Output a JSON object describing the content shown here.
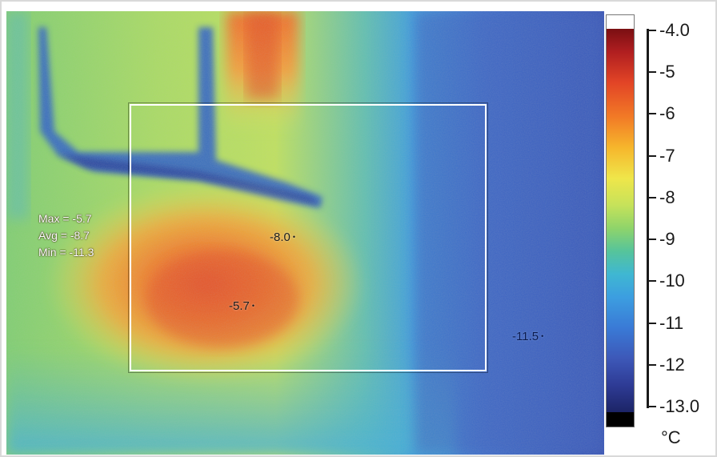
{
  "roi_stats": {
    "max_line": "Max = -5.7",
    "avg_line": "Avg = -8.7",
    "min_line": "Min = -11.3"
  },
  "spots": {
    "max_spot": "-5.7",
    "center_spot": "-8.0",
    "cold_spot": "-11.5",
    "marker": "•"
  },
  "scale": {
    "unit": "°C",
    "labels": [
      "-4.0",
      "-5",
      "-6",
      "-7",
      "-8",
      "-9",
      "-10",
      "-11",
      "-12",
      "-13.0"
    ],
    "max": -4.0,
    "min": -13.0
  },
  "colors": {
    "hot": "#b01e20",
    "warm": "#f27a26",
    "mid": "#efe64a",
    "cool": "#3fb7d2",
    "cold": "#2e3b95",
    "roi_border": "#ffffff"
  }
}
